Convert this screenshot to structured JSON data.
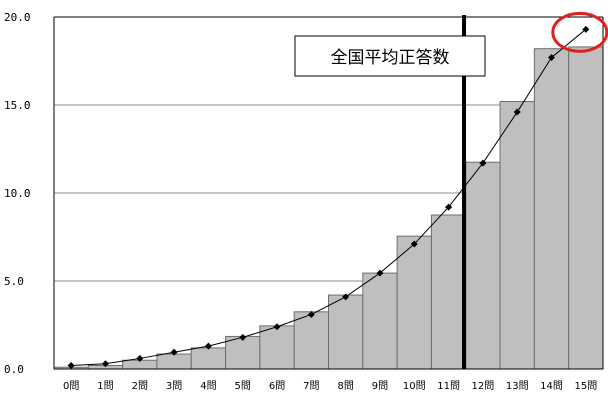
{
  "chart_data": {
    "type": "bar",
    "categories": [
      "0問",
      "1問",
      "2問",
      "3問",
      "4問",
      "5問",
      "6問",
      "7問",
      "8問",
      "9問",
      "10問",
      "11問",
      "12問",
      "13問",
      "14問",
      "15問"
    ],
    "series": [
      {
        "type": "bar",
        "values": [
          0.1,
          0.2,
          0.5,
          0.85,
          1.2,
          1.85,
          2.45,
          3.25,
          4.2,
          5.45,
          7.55,
          8.75,
          11.75,
          15.2,
          18.2,
          18.3
        ]
      },
      {
        "type": "line",
        "values": [
          0.2,
          0.3,
          0.6,
          0.95,
          1.3,
          1.8,
          2.4,
          3.1,
          4.1,
          5.45,
          7.1,
          9.2,
          11.7,
          14.6,
          17.7,
          19.3
        ]
      }
    ],
    "y_ticks": [
      "0.0",
      "5.0",
      "10.0",
      "15.0",
      "20.0"
    ],
    "ylim": [
      0,
      20
    ],
    "grid": true,
    "colors": {
      "bar": "#bfbfbf",
      "bar_edge": "#6e6e6e",
      "line": "#000000",
      "marker": "#000000",
      "highlight": "#e0201c"
    },
    "annotation": {
      "label": "全国平均正答数",
      "x": 11.45
    },
    "highlight_category": "15問"
  }
}
